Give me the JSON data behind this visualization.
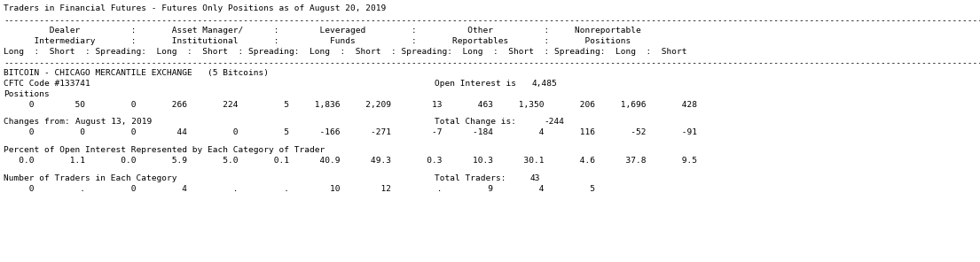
{
  "title": "Traders in Financial Futures - Futures Only Positions as of August 20, 2019",
  "bg_color": "#ffffff",
  "text_color": "#000000",
  "separator": "----------------------------------------------------------------------------------------------------------------------------------------------------------------------------------------------------",
  "header1": "         Dealer          :       Asset Manager/      :        Leveraged         :          Other          :     Nonreportable",
  "header2": "      Intermediary       :       Institutional       :          Funds           :       Reportables       :       Positions",
  "header3": "Long  :  Short  : Spreading:  Long  :  Short  : Spreading:  Long  :  Short  : Spreading:  Long  :  Short  : Spreading:  Long  :  Short",
  "exchange": "BITCOIN - CHICAGO MERCANTILE EXCHANGE   (5 Bitcoins)",
  "cftc": "CFTC Code #133741",
  "open_interest_label": "Open Interest is",
  "open_interest_value": "4,485",
  "positions_label": "Positions",
  "pos_row": "     0        50         0       266       224         5     1,836     2,209        13       463     1,350       206     1,696       428",
  "changes_label": "Changes from:",
  "changes_date": "August 13, 2019",
  "total_change_label": "Total Change is:",
  "total_change_value": "-244",
  "chg_row": "     0         0         0        44         0         5      -166      -271        -7      -184         4       116       -52       -91",
  "pct_label": "Percent of Open Interest Represented by Each Category of Trader",
  "pct_row": "   0.0       1.1       0.0       5.9       5.0       0.1      40.9      49.3       0.3      10.3      30.1       4.6      37.8       9.5",
  "traders_label": "Number of Traders in Each Category",
  "total_traders_label": "Total Traders:",
  "total_traders_value": "43",
  "traders_row": "     0         .         0         4         .         .        10        12         .         9         4         5"
}
